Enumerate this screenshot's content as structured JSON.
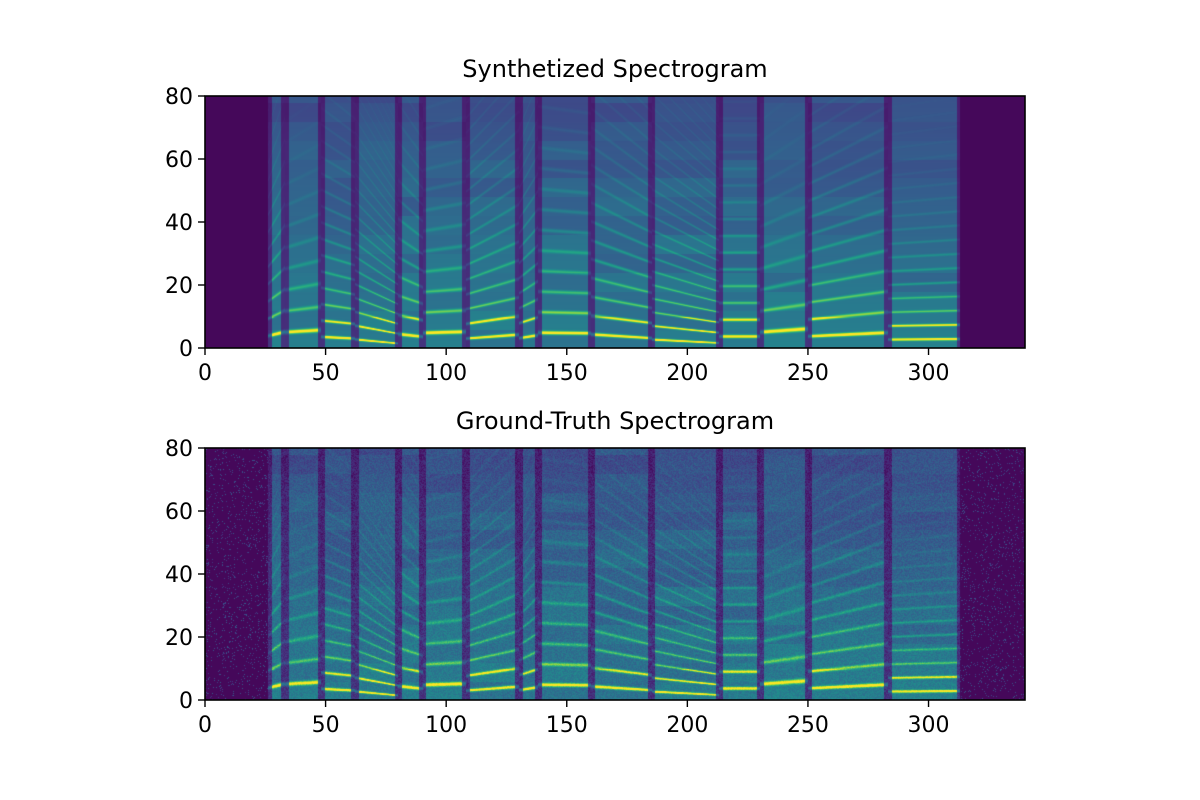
{
  "chart_data": [
    {
      "type": "heatmap",
      "title": "Synthetized Spectrogram",
      "xlabel": "",
      "ylabel": "",
      "xlim": [
        0,
        340
      ],
      "ylim": [
        0,
        80
      ],
      "xticks": [
        0,
        50,
        100,
        150,
        200,
        250,
        300
      ],
      "yticks": [
        0,
        20,
        40,
        60,
        80
      ],
      "colormap": "viridis",
      "frames": 340,
      "mel_bins": 80,
      "speech_start_frame": 26,
      "speech_end_frame": 313,
      "segment_boundaries": [
        26,
        33,
        48,
        62,
        80,
        90,
        108,
        130,
        138,
        160,
        185,
        213,
        230,
        250,
        283,
        313
      ],
      "noisy": false
    },
    {
      "type": "heatmap",
      "title": "Ground-Truth Spectrogram",
      "xlabel": "",
      "ylabel": "",
      "xlim": [
        0,
        340
      ],
      "ylim": [
        0,
        80
      ],
      "xticks": [
        0,
        50,
        100,
        150,
        200,
        250,
        300
      ],
      "yticks": [
        0,
        20,
        40,
        60,
        80
      ],
      "colormap": "viridis",
      "frames": 340,
      "mel_bins": 80,
      "speech_start_frame": 26,
      "speech_end_frame": 313,
      "segment_boundaries": [
        26,
        33,
        48,
        62,
        80,
        90,
        108,
        130,
        138,
        160,
        185,
        213,
        230,
        250,
        283,
        313
      ],
      "noisy": true
    }
  ]
}
